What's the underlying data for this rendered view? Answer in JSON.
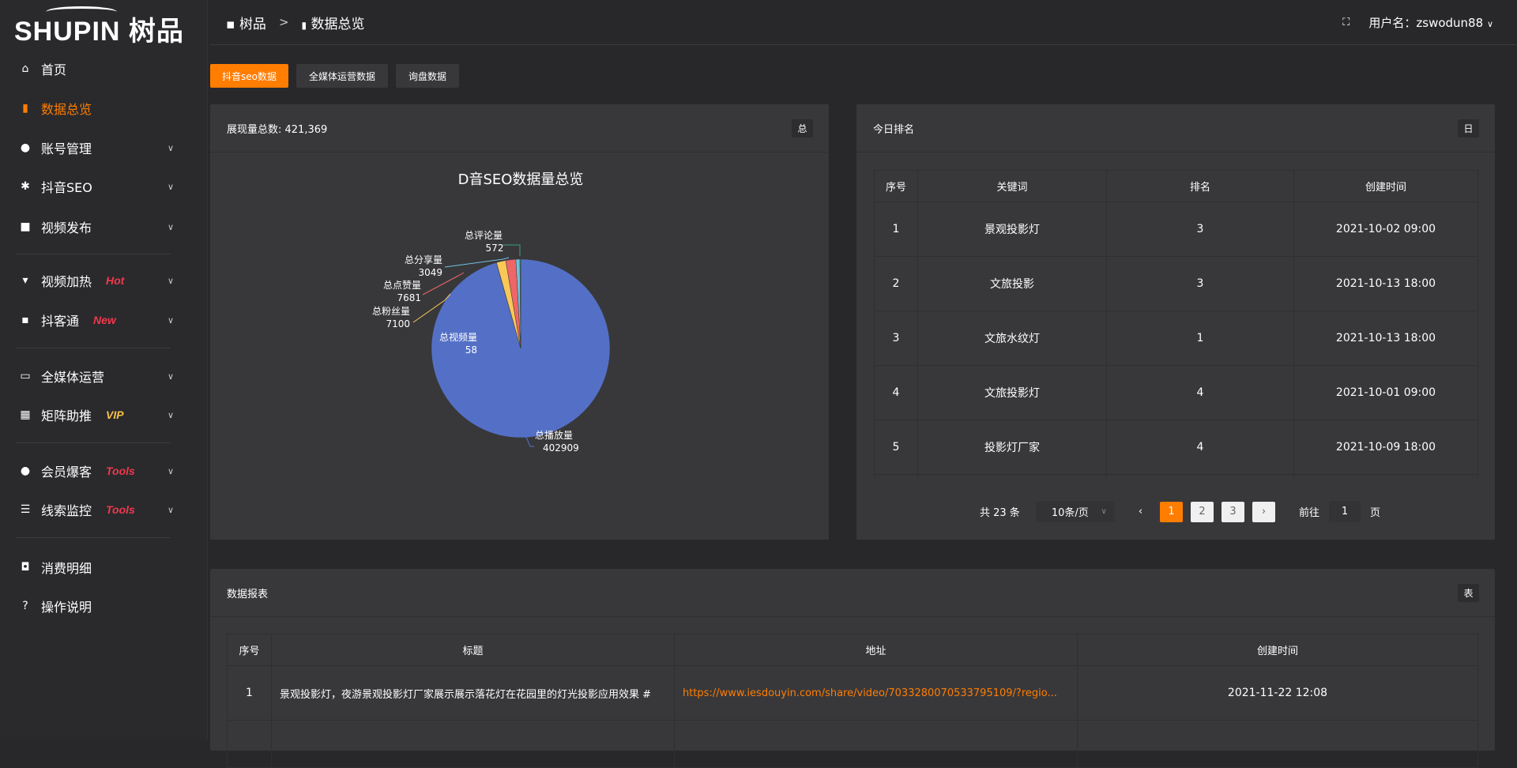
{
  "logo": {
    "text": "SHUPIN 树品"
  },
  "sidebar": {
    "items": [
      {
        "label": "首页",
        "icon": "home-icon"
      },
      {
        "label": "数据总览",
        "icon": "bar-chart-icon"
      },
      {
        "label": "账号管理",
        "icon": "user-icon"
      },
      {
        "label": "抖音SEO",
        "icon": "gear-icon"
      },
      {
        "label": "视频发布",
        "icon": "camera-icon"
      },
      {
        "label": "视频加热",
        "icon": "flag-icon",
        "badge": "Hot",
        "badge_color": "#f0384b"
      },
      {
        "label": "抖客通",
        "icon": "chat-icon",
        "badge": "New",
        "badge_color": "#f0384b"
      },
      {
        "label": "全媒体运营",
        "icon": "monitor-icon"
      },
      {
        "label": "矩阵助推",
        "icon": "grid-icon",
        "badge": "VIP",
        "badge_color": "#f5c04a"
      },
      {
        "label": "会员爆客",
        "icon": "user-icon",
        "badge": "Tools",
        "badge_color": "#f0384b"
      },
      {
        "label": "线索监控",
        "icon": "sliders-icon",
        "badge": "Tools",
        "badge_color": "#f0384b"
      },
      {
        "label": "消费明细",
        "icon": "wallet-icon"
      },
      {
        "label": "操作说明",
        "icon": "question-icon"
      }
    ]
  },
  "header": {
    "breadcrumb": [
      "树品",
      "数据总览"
    ],
    "separator": ">",
    "user_label": "用户名：zswodun88"
  },
  "tabs": [
    "抖音seo数据",
    "全媒体运营数据",
    "询盘数据"
  ],
  "pie_card": {
    "title": "展现量总数: 421,369",
    "button": "总"
  },
  "chart_data": {
    "type": "pie",
    "title": "D音SEO数据量总览",
    "categories": [
      "总播放量",
      "总视频量",
      "总粉丝量",
      "总点赞量",
      "总分享量",
      "总评论量"
    ],
    "values": [
      402909,
      58,
      7100,
      7681,
      3049,
      572
    ],
    "colors": [
      "#5470c6",
      "#91cc75",
      "#fac858",
      "#ee6666",
      "#73c0de",
      "#3ba272"
    ],
    "legend": "bottom"
  },
  "rank_card": {
    "title": "今日排名",
    "button": "日",
    "columns": [
      "序号",
      "关键词",
      "排名",
      "创建时间"
    ],
    "rows": [
      [
        "1",
        "景观投影灯",
        "3",
        "2021-10-02 09:00"
      ],
      [
        "2",
        "文旅投影",
        "3",
        "2021-10-13 18:00"
      ],
      [
        "3",
        "文旅水纹灯",
        "1",
        "2021-10-13 18:00"
      ],
      [
        "4",
        "文旅投影灯",
        "4",
        "2021-10-01 09:00"
      ],
      [
        "5",
        "投影灯厂家",
        "4",
        "2021-10-09 18:00"
      ]
    ],
    "pagination": {
      "total": "共 23 条",
      "page_size": "10条/页",
      "pages": [
        "1",
        "2",
        "3"
      ],
      "current": "1",
      "goto_label": "前往",
      "goto_value": "1",
      "page_unit": "页"
    }
  },
  "report_card": {
    "title": "数据报表",
    "button": "表",
    "columns": [
      "序号",
      "标题",
      "地址",
      "创建时间"
    ],
    "rows": [
      [
        "1",
        "景观投影灯，夜游景观投影灯厂家展示展示落花灯在花园里的灯光投影应用效果 #",
        "https://www.iesdouyin.com/share/video/7033280070533795109/?regio...",
        "2021-11-22 12:08"
      ]
    ]
  }
}
